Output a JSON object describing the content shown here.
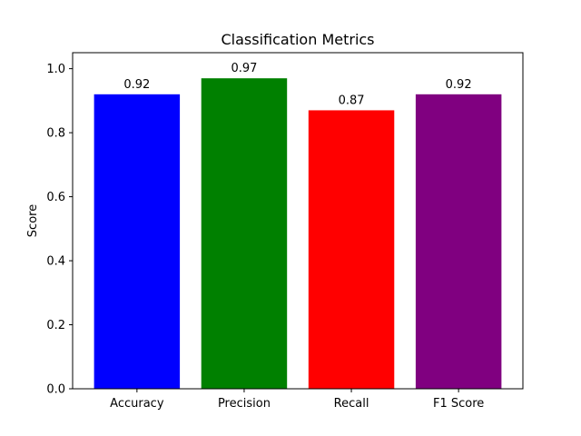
{
  "chart_data": {
    "type": "bar",
    "title": "Classification Metrics",
    "xlabel": "",
    "ylabel": "Score",
    "categories": [
      "Accuracy",
      "Precision",
      "Recall",
      "F1 Score"
    ],
    "values": [
      0.92,
      0.97,
      0.87,
      0.92
    ],
    "value_labels": [
      "0.92",
      "0.97",
      "0.87",
      "0.92"
    ],
    "colors": [
      "#0000ff",
      "#008000",
      "#ff0000",
      "#800080"
    ],
    "ylim": [
      0,
      1.05
    ],
    "yticks": [
      0.0,
      0.2,
      0.4,
      0.6,
      0.8,
      1.0
    ],
    "ytick_labels": [
      "0.0",
      "0.2",
      "0.4",
      "0.6",
      "0.8",
      "1.0"
    ],
    "grid": false,
    "legend": "none"
  }
}
